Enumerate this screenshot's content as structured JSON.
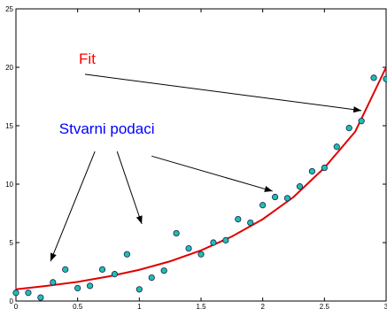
{
  "chart_data": {
    "type": "scatter",
    "title": "",
    "xlabel": "",
    "ylabel": "",
    "xlim": [
      0,
      3
    ],
    "ylim": [
      0,
      25
    ],
    "x_ticks": [
      0,
      0.5,
      1,
      1.5,
      2,
      2.5,
      3
    ],
    "x_tick_labels": [
      "0",
      "0.5",
      "1",
      "1.5",
      "2",
      "2.5",
      "3"
    ],
    "y_ticks": [
      0,
      5,
      10,
      15,
      20,
      25
    ],
    "y_tick_labels": [
      "0",
      "5",
      "10",
      "15",
      "20",
      "25"
    ],
    "grid": false,
    "series": [
      {
        "kind": "points",
        "marker_color": "#20c0a8",
        "x": [
          0.0,
          0.1,
          0.2,
          0.3,
          0.4,
          0.5,
          0.6,
          0.7,
          0.8,
          0.9,
          1.0,
          1.1,
          1.2,
          1.3,
          1.4,
          1.5,
          1.6,
          1.7,
          1.8,
          1.9,
          2.0,
          2.1,
          2.2,
          2.3,
          2.4,
          2.5,
          2.6,
          2.7,
          2.8,
          2.9,
          3.0
        ],
        "y": [
          0.7,
          0.7,
          0.3,
          1.6,
          2.7,
          1.1,
          1.3,
          2.7,
          2.3,
          4.0,
          1.0,
          2.0,
          2.6,
          5.8,
          4.5,
          4.0,
          5.0,
          5.2,
          7.0,
          6.7,
          8.2,
          8.9,
          8.8,
          9.8,
          11.1,
          11.4,
          13.2,
          14.8,
          15.4,
          19.1,
          19.0
        ]
      },
      {
        "kind": "curve",
        "line_color": "#e00000",
        "x": [
          0,
          0.25,
          0.5,
          0.75,
          1.0,
          1.25,
          1.5,
          1.75,
          2.0,
          2.25,
          2.5,
          2.75,
          3.0
        ],
        "y": [
          1.0,
          1.3,
          1.64,
          2.1,
          2.67,
          3.4,
          4.33,
          5.52,
          7.0,
          8.9,
          11.4,
          14.5,
          20.0
        ]
      }
    ],
    "annotations": [
      {
        "text": "Fit",
        "color": "#ff0000",
        "text_pos": [
          0.51,
          20.3
        ],
        "arrows": [
          {
            "from": [
              0.56,
              19.4
            ],
            "to": [
              2.8,
              16.3
            ]
          }
        ]
      },
      {
        "text": "Stvarni podaci",
        "color": "#0000ff",
        "text_pos": [
          0.35,
          14.3
        ],
        "arrows": [
          {
            "from": [
              0.64,
              12.8
            ],
            "to": [
              0.28,
              3.4
            ]
          },
          {
            "from": [
              0.82,
              12.8
            ],
            "to": [
              1.02,
              6.6
            ]
          },
          {
            "from": [
              1.1,
              12.4
            ],
            "to": [
              2.08,
              9.4
            ]
          }
        ]
      }
    ]
  }
}
